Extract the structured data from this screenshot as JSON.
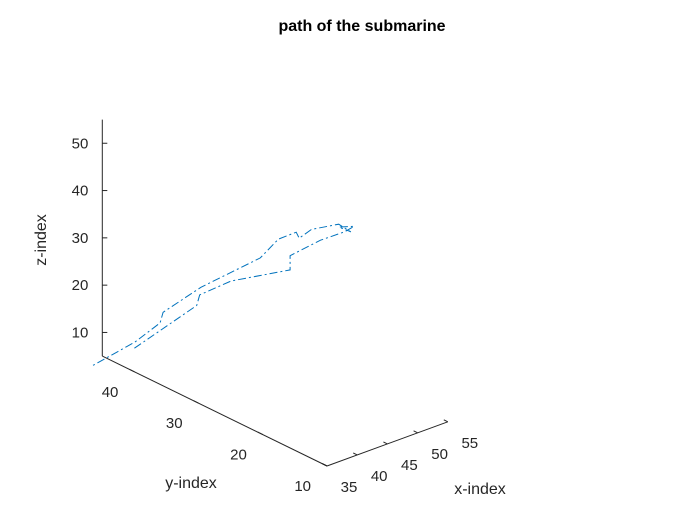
{
  "chart_data": {
    "type": "line3d",
    "title": "path of the submarine",
    "xlabel": "x-index",
    "ylabel": "y-index",
    "zlabel": "z-index",
    "xlim": [
      35,
      55
    ],
    "ylim": [
      10,
      45
    ],
    "zlim": [
      5,
      55
    ],
    "xticks": [
      "35",
      "40",
      "45",
      "50",
      "55"
    ],
    "yticks": [
      "10",
      "20",
      "30",
      "40"
    ],
    "zticks": [
      "10",
      "20",
      "30",
      "40",
      "50"
    ],
    "grid": false,
    "line_style": "dash-dot",
    "series": [
      {
        "color": "#0072BD",
        "points": [
          {
            "x": 35.0,
            "y": 40.0,
            "z": 10.0
          },
          {
            "x": 40.0,
            "y": 35.0,
            "z": 20.0
          },
          {
            "x": 40.5,
            "y": 35.0,
            "z": 22.0
          },
          {
            "x": 42.5,
            "y": 32.0,
            "z": 26.0
          },
          {
            "x": 47.5,
            "y": 27.5,
            "z": 29.0
          },
          {
            "x": 47.5,
            "y": 27.5,
            "z": 32.0
          },
          {
            "x": 52.0,
            "y": 27.0,
            "z": 33.5
          },
          {
            "x": 55.5,
            "y": 26.5,
            "z": 34.0
          },
          {
            "x": 56.5,
            "y": 26.0,
            "z": 35.0
          },
          {
            "x": 54.0,
            "y": 26.0,
            "z": 36.0
          },
          {
            "x": 56.0,
            "y": 26.5,
            "z": 34.0
          },
          {
            "x": 56.5,
            "y": 26.5,
            "z": 33.5
          },
          {
            "x": 55.0,
            "y": 27.0,
            "z": 35.5
          },
          {
            "x": 50.5,
            "y": 27.0,
            "z": 36.5
          },
          {
            "x": 49.0,
            "y": 27.5,
            "z": 35.0
          },
          {
            "x": 48.5,
            "y": 27.5,
            "z": 36.5
          },
          {
            "x": 45.0,
            "y": 27.0,
            "z": 37.0
          },
          {
            "x": 41.5,
            "y": 26.5,
            "z": 35.0
          },
          {
            "x": 37.5,
            "y": 32.0,
            "z": 27.0
          },
          {
            "x": 35.5,
            "y": 36.0,
            "z": 20.0
          },
          {
            "x": 35.0,
            "y": 36.0,
            "z": 18.0
          },
          {
            "x": 33.5,
            "y": 38.5,
            "z": 13.0
          },
          {
            "x": 31.0,
            "y": 43.0,
            "z": 6.0
          }
        ]
      }
    ]
  }
}
